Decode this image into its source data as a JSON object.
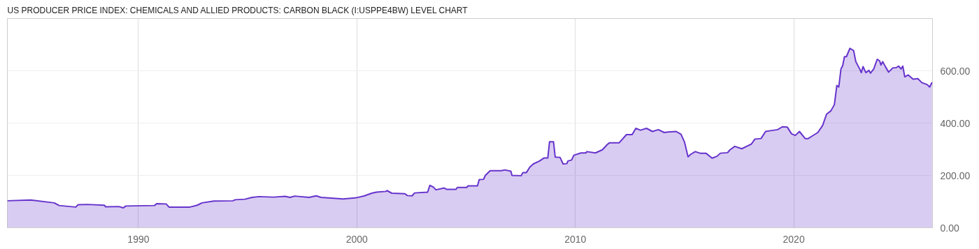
{
  "chart_data": {
    "type": "area",
    "title": "US PRODUCER PRICE INDEX: CHEMICALS AND ALLIED PRODUCTS: CARBON BLACK (I:USPPE4BW) LEVEL CHART",
    "x": [
      1984.0,
      1985.07,
      1986.15,
      1986.37,
      1987.13,
      1987.24,
      1987.68,
      1988.44,
      1988.5,
      1989.1,
      1989.31,
      1989.42,
      1990.73,
      1990.84,
      1991.27,
      1991.4,
      1992.36,
      1992.69,
      1992.91,
      1993.45,
      1994.32,
      1994.43,
      1994.87,
      1995.2,
      1995.52,
      1996.18,
      1996.72,
      1996.94,
      1997.16,
      1997.81,
      1998.14,
      1998.36,
      1998.71,
      1999.37,
      2000.0,
      2000.35,
      2000.68,
      2000.89,
      2001.33,
      2001.38,
      2001.6,
      2002.2,
      2002.31,
      2002.53,
      2002.64,
      2003.24,
      2003.34,
      2003.51,
      2003.62,
      2004.0,
      2004.1,
      2004.54,
      2004.6,
      2005.03,
      2005.09,
      2005.52,
      2005.6,
      2005.8,
      2005.88,
      2006.1,
      2006.61,
      2006.78,
      2007.05,
      2007.1,
      2007.52,
      2007.6,
      2007.76,
      2007.92,
      2008.08,
      2008.36,
      2008.57,
      2008.74,
      2008.82,
      2009.0,
      2009.08,
      2009.3,
      2009.44,
      2009.61,
      2009.66,
      2009.83,
      2009.93,
      2010.26,
      2010.48,
      2010.53,
      2010.92,
      2011.24,
      2011.46,
      2011.57,
      2012.01,
      2012.34,
      2012.6,
      2012.77,
      2012.98,
      2013.26,
      2013.53,
      2013.8,
      2014.07,
      2014.24,
      2014.62,
      2014.84,
      2015.0,
      2015.16,
      2015.27,
      2015.49,
      2015.71,
      2015.98,
      2016.26,
      2016.48,
      2016.64,
      2016.97,
      2017.08,
      2017.3,
      2017.62,
      2017.89,
      2018.06,
      2018.22,
      2018.5,
      2018.71,
      2018.93,
      2019.26,
      2019.48,
      2019.7,
      2019.9,
      2020.07,
      2020.26,
      2020.52,
      2020.66,
      2020.83,
      2021.1,
      2021.32,
      2021.5,
      2021.7,
      2021.86,
      2021.97,
      2022.06,
      2022.16,
      2022.24,
      2022.32,
      2022.41,
      2022.57,
      2022.74,
      2022.84,
      2023.03,
      2023.09,
      2023.17,
      2023.3,
      2023.44,
      2023.51,
      2023.66,
      2023.82,
      2023.93,
      2023.99,
      2024.07,
      2024.2,
      2024.34,
      2024.53,
      2024.69,
      2024.8,
      2024.91,
      2024.99,
      2025.08,
      2025.24,
      2025.46,
      2025.68,
      2025.86,
      2026.11,
      2026.22,
      2026.33
    ],
    "series": [
      {
        "color": "#6633cc",
        "values": [
          103,
          106,
          95,
          85,
          79,
          88,
          89,
          86,
          80,
          81,
          76,
          83,
          85,
          92,
          91,
          79,
          79,
          86,
          95,
          102,
          103,
          107,
          109,
          116,
          119,
          117,
          120,
          116,
          121,
          116,
          122,
          116,
          114,
          110,
          115,
          122,
          132,
          136,
          139,
          142,
          132,
          130,
          123,
          122,
          133,
          136,
          162,
          155,
          145,
          152,
          147,
          147,
          154,
          154,
          160,
          160,
          184,
          185,
          200,
          218,
          218,
          221,
          216,
          200,
          199,
          211,
          211,
          232,
          244,
          255,
          267,
          267,
          329,
          329,
          270,
          269,
          244,
          245,
          255,
          259,
          277,
          286,
          286,
          291,
          286,
          298,
          318,
          325,
          325,
          356,
          356,
          380,
          373,
          380,
          368,
          375,
          364,
          366,
          368,
          357,
          327,
          271,
          280,
          291,
          285,
          285,
          266,
          273,
          285,
          287,
          298,
          311,
          302,
          313,
          320,
          339,
          341,
          368,
          371,
          375,
          386,
          385,
          359,
          353,
          368,
          341,
          341,
          350,
          364,
          391,
          434,
          447,
          471,
          544,
          538,
          607,
          620,
          654,
          654,
          686,
          677,
          635,
          605,
          593,
          616,
          593,
          602,
          591,
          607,
          644,
          638,
          622,
          635,
          615,
          595,
          611,
          612,
          618,
          607,
          618,
          577,
          584,
          568,
          570,
          555,
          547,
          538,
          556
        ]
      }
    ],
    "xlim": [
      1984.0,
      2026.35
    ],
    "ylim": [
      0,
      800
    ],
    "xticks": [
      1990,
      2000,
      2010,
      2020
    ],
    "yticks": [
      {
        "value": 0,
        "label": "0.00"
      },
      {
        "value": 200,
        "label": "200.00"
      },
      {
        "value": 400,
        "label": "400.00"
      },
      {
        "value": 600,
        "label": "600.00"
      }
    ],
    "grid": true
  }
}
